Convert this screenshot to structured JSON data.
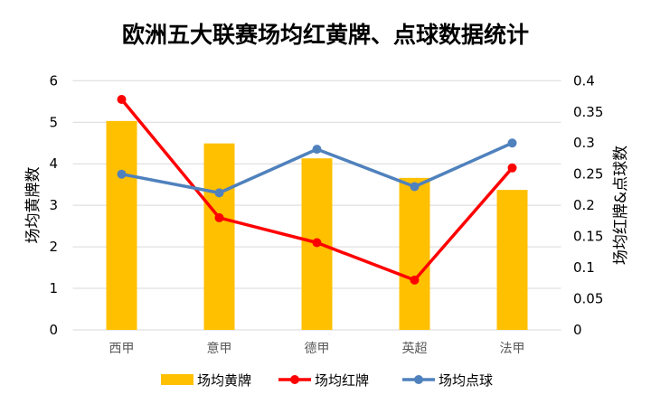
{
  "chart_data": {
    "type": "bar+line",
    "title": "欧洲五大联赛场均红黄牌、点球数据统计",
    "categories": [
      "西甲",
      "意甲",
      "德甲",
      "英超",
      "法甲"
    ],
    "ylabel": "场均黄牌数",
    "y2label": "场均红牌&点球数",
    "ylim": [
      0,
      6
    ],
    "y2lim": [
      0,
      0.4
    ],
    "yticks": [
      "0",
      "1",
      "2",
      "3",
      "4",
      "5",
      "6"
    ],
    "y2ticks": [
      "0",
      "0.05",
      "0.1",
      "0.15",
      "0.2",
      "0.25",
      "0.3",
      "0.35",
      "0.4"
    ],
    "grid": true,
    "legend_position": "bottom",
    "series": [
      {
        "name": "场均黄牌",
        "type": "bar",
        "axis": "left",
        "color": "#FFC000",
        "values": [
          5.03,
          4.49,
          4.13,
          3.66,
          3.37
        ]
      },
      {
        "name": "场均红牌",
        "type": "line",
        "axis": "right",
        "color": "#FF0000",
        "values": [
          0.37,
          0.18,
          0.14,
          0.08,
          0.26
        ]
      },
      {
        "name": "场均点球",
        "type": "line",
        "axis": "right",
        "color": "#4F81BD",
        "values": [
          0.25,
          0.22,
          0.29,
          0.23,
          0.3
        ]
      }
    ]
  }
}
